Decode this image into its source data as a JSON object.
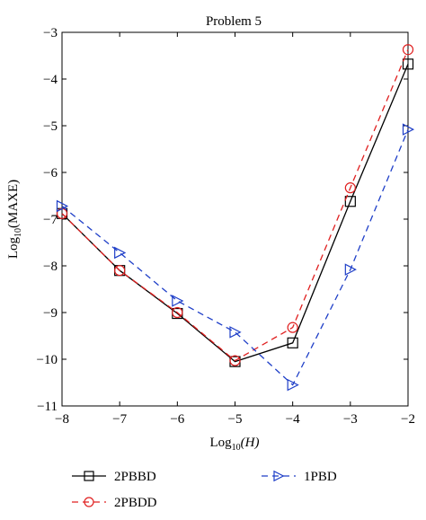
{
  "chart_data": {
    "type": "line",
    "title": "Problem 5",
    "xlabel": {
      "base": "Log",
      "sub": "10",
      "rest": "(H)"
    },
    "ylabel": {
      "base": "Log",
      "sub": "10",
      "rest": "(MAXE)"
    },
    "xlim": [
      -8,
      -2
    ],
    "ylim": [
      -11,
      -3
    ],
    "xticks": [
      "-8",
      "-7",
      "-6",
      "-5",
      "-4",
      "-3",
      "-2"
    ],
    "yticks": [
      "-11",
      "-10",
      "-9",
      "-8",
      "-7",
      "-6",
      "-5",
      "-4",
      "-3"
    ],
    "grid": false,
    "legend_placement": "bottom",
    "series": [
      {
        "name": "2PBBD",
        "color": "#000000",
        "dash": "solid",
        "marker": "square",
        "x": [
          -8,
          -7,
          -6,
          -5,
          -4,
          -3,
          -2
        ],
        "y": [
          -6.88,
          -8.1,
          -9.02,
          -10.05,
          -9.65,
          -6.62,
          -3.68
        ]
      },
      {
        "name": "2PBDD",
        "color": "#e02020",
        "dash": "dashed",
        "marker": "circle",
        "x": [
          -8,
          -7,
          -6,
          -5,
          -4,
          -3,
          -2
        ],
        "y": [
          -6.88,
          -8.1,
          -9.0,
          -10.03,
          -9.32,
          -6.33,
          -3.37
        ]
      },
      {
        "name": "1PBD",
        "color": "#1f3fc8",
        "dash": "dashed",
        "marker": "triangle-right",
        "x": [
          -8,
          -7,
          -6,
          -5,
          -4,
          -3,
          -2
        ],
        "y": [
          -6.72,
          -7.72,
          -8.75,
          -9.42,
          -10.55,
          -8.08,
          -5.08
        ]
      }
    ]
  }
}
